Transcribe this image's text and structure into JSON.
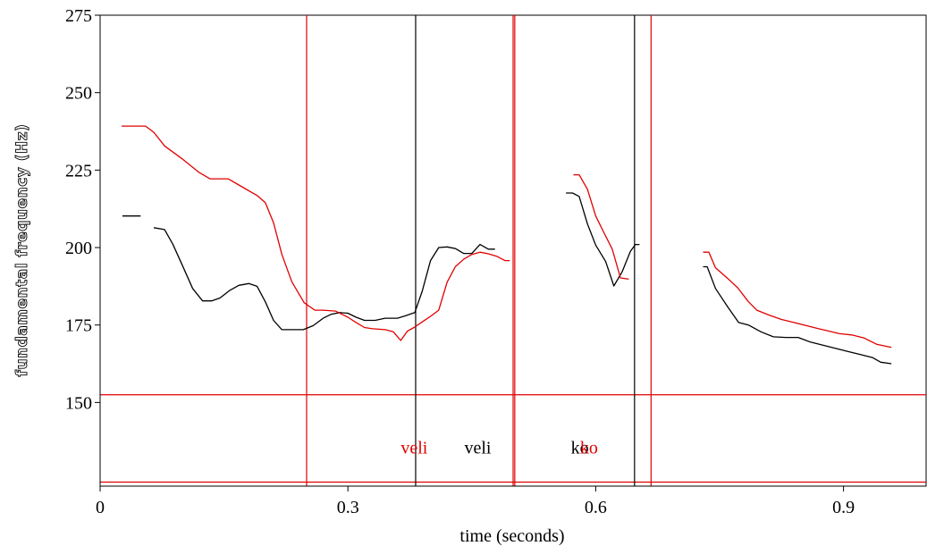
{
  "chart_data": {
    "type": "line",
    "xlabel": "time (seconds)",
    "ylabel": "fundamental frequency (Hz)",
    "xlim": [
      0,
      1.0
    ],
    "ylim": [
      123,
      275
    ],
    "xticks": [
      {
        "value": 0,
        "label": "0"
      },
      {
        "value": 0.3,
        "label": "0.3"
      },
      {
        "value": 0.6,
        "label": "0.6"
      },
      {
        "value": 0.9,
        "label": "0.9"
      }
    ],
    "yticks": [
      {
        "value": 275,
        "label": "275"
      },
      {
        "value": 250,
        "label": "250"
      },
      {
        "value": 225,
        "label": "225"
      },
      {
        "value": 200,
        "label": "200"
      },
      {
        "value": 175,
        "label": "175"
      },
      {
        "value": 150,
        "label": "150"
      }
    ],
    "grid": false,
    "colors": {
      "series_a": "#000000",
      "series_b": "#e00000"
    },
    "series": [
      {
        "color": "#000000",
        "segments": [
          [
            [
              0.027,
              210.2
            ],
            [
              0.049,
              210.2
            ]
          ],
          [
            [
              0.065,
              206.4
            ],
            [
              0.078,
              205.8
            ],
            [
              0.088,
              201.1
            ],
            [
              0.1,
              194.0
            ],
            [
              0.112,
              186.8
            ],
            [
              0.124,
              182.8
            ],
            [
              0.135,
              182.8
            ],
            [
              0.145,
              183.7
            ],
            [
              0.157,
              186.2
            ],
            [
              0.168,
              187.8
            ],
            [
              0.18,
              188.4
            ],
            [
              0.19,
              187.5
            ],
            [
              0.2,
              182.5
            ],
            [
              0.21,
              176.5
            ],
            [
              0.22,
              173.5
            ],
            [
              0.232,
              173.5
            ],
            [
              0.246,
              173.5
            ],
            [
              0.258,
              174.8
            ],
            [
              0.27,
              177.2
            ],
            [
              0.28,
              178.5
            ],
            [
              0.29,
              179.0
            ],
            [
              0.3,
              178.8
            ],
            [
              0.31,
              177.5
            ],
            [
              0.32,
              176.5
            ],
            [
              0.333,
              176.5
            ],
            [
              0.345,
              177.2
            ],
            [
              0.36,
              177.2
            ],
            [
              0.37,
              178.0
            ],
            [
              0.381,
              179.0
            ],
            [
              0.39,
              186.0
            ],
            [
              0.4,
              195.8
            ],
            [
              0.41,
              200.0
            ],
            [
              0.42,
              200.2
            ],
            [
              0.43,
              199.7
            ],
            [
              0.44,
              198.1
            ],
            [
              0.45,
              198.1
            ],
            [
              0.46,
              201.0
            ],
            [
              0.47,
              199.5
            ],
            [
              0.478,
              199.5
            ]
          ],
          [
            [
              0.564,
              217.6
            ],
            [
              0.572,
              217.6
            ],
            [
              0.58,
              216.5
            ],
            [
              0.59,
              207.6
            ],
            [
              0.6,
              200.8
            ],
            [
              0.612,
              195.5
            ],
            [
              0.622,
              187.6
            ],
            [
              0.632,
              192.2
            ],
            [
              0.642,
              198.8
            ],
            [
              0.648,
              201.0
            ],
            [
              0.653,
              201.0
            ]
          ],
          [
            [
              0.73,
              193.8
            ],
            [
              0.735,
              193.8
            ],
            [
              0.745,
              186.8
            ],
            [
              0.76,
              180.8
            ],
            [
              0.773,
              175.8
            ],
            [
              0.785,
              175.0
            ],
            [
              0.8,
              172.8
            ],
            [
              0.815,
              171.2
            ],
            [
              0.83,
              171.0
            ],
            [
              0.845,
              171.0
            ],
            [
              0.86,
              169.5
            ],
            [
              0.875,
              168.5
            ],
            [
              0.89,
              167.5
            ],
            [
              0.905,
              166.5
            ],
            [
              0.92,
              165.5
            ],
            [
              0.935,
              164.5
            ],
            [
              0.945,
              163.0
            ],
            [
              0.958,
              162.5
            ]
          ]
        ]
      },
      {
        "color": "#e00000",
        "segments": [
          [
            [
              0.026,
              239.2
            ],
            [
              0.055,
              239.2
            ],
            [
              0.065,
              237.2
            ],
            [
              0.078,
              232.8
            ],
            [
              0.1,
              228.5
            ],
            [
              0.12,
              224.2
            ],
            [
              0.133,
              222.2
            ],
            [
              0.155,
              222.2
            ],
            [
              0.168,
              220.2
            ],
            [
              0.19,
              216.8
            ],
            [
              0.2,
              214.5
            ],
            [
              0.21,
              208.0
            ],
            [
              0.22,
              197.8
            ],
            [
              0.232,
              189.0
            ],
            [
              0.247,
              182.2
            ],
            [
              0.26,
              179.8
            ],
            [
              0.27,
              179.8
            ],
            [
              0.285,
              179.5
            ],
            [
              0.3,
              177.5
            ],
            [
              0.31,
              175.8
            ],
            [
              0.32,
              174.2
            ],
            [
              0.33,
              173.8
            ],
            [
              0.345,
              173.5
            ],
            [
              0.355,
              172.8
            ],
            [
              0.364,
              170.0
            ],
            [
              0.372,
              173.0
            ],
            [
              0.38,
              174.2
            ],
            [
              0.39,
              176.0
            ],
            [
              0.4,
              177.8
            ],
            [
              0.41,
              179.8
            ],
            [
              0.42,
              188.8
            ],
            [
              0.43,
              193.8
            ],
            [
              0.44,
              196.2
            ],
            [
              0.45,
              197.8
            ],
            [
              0.46,
              198.5
            ],
            [
              0.47,
              198.0
            ],
            [
              0.48,
              197.2
            ],
            [
              0.49,
              195.8
            ],
            [
              0.496,
              195.8
            ]
          ],
          [
            [
              0.573,
              223.5
            ],
            [
              0.58,
              223.5
            ],
            [
              0.59,
              218.8
            ],
            [
              0.6,
              210.2
            ],
            [
              0.61,
              204.8
            ],
            [
              0.62,
              199.5
            ],
            [
              0.63,
              190.2
            ],
            [
              0.64,
              189.8
            ]
          ],
          [
            [
              0.73,
              198.5
            ],
            [
              0.737,
              198.5
            ],
            [
              0.745,
              193.5
            ],
            [
              0.76,
              190.0
            ],
            [
              0.772,
              187.0
            ],
            [
              0.785,
              182.5
            ],
            [
              0.795,
              179.8
            ],
            [
              0.81,
              178.2
            ],
            [
              0.825,
              176.8
            ],
            [
              0.84,
              175.8
            ],
            [
              0.855,
              174.8
            ],
            [
              0.87,
              173.8
            ],
            [
              0.88,
              173.2
            ],
            [
              0.895,
              172.2
            ],
            [
              0.91,
              171.8
            ],
            [
              0.925,
              170.8
            ],
            [
              0.94,
              168.8
            ],
            [
              0.958,
              167.8
            ]
          ]
        ]
      }
    ],
    "vertical_markers": [
      {
        "x": 0.25,
        "color": "#e00000"
      },
      {
        "x": 0.382,
        "color": "#000000"
      },
      {
        "x": 0.5,
        "color": "#e00000"
      },
      {
        "x": 0.502,
        "color": "#e00000"
      },
      {
        "x": 0.647,
        "color": "#000000"
      },
      {
        "x": 0.667,
        "color": "#e00000"
      }
    ],
    "horizontal_markers": [
      {
        "y": 152.5,
        "color": "#e00000"
      },
      {
        "y": 124.3,
        "color": "#e00000"
      }
    ],
    "annotations": [
      {
        "text": "veli",
        "x": 0.364,
        "y": 135.5,
        "color": "#e00000"
      },
      {
        "text": "veli",
        "x": 0.441,
        "y": 135.5,
        "color": "#000000"
      },
      {
        "text": "ko",
        "x": 0.57,
        "y": 135.5,
        "color": "#000000"
      },
      {
        "text": "ko",
        "x": 0.581,
        "y": 135.5,
        "color": "#e00000"
      }
    ]
  }
}
